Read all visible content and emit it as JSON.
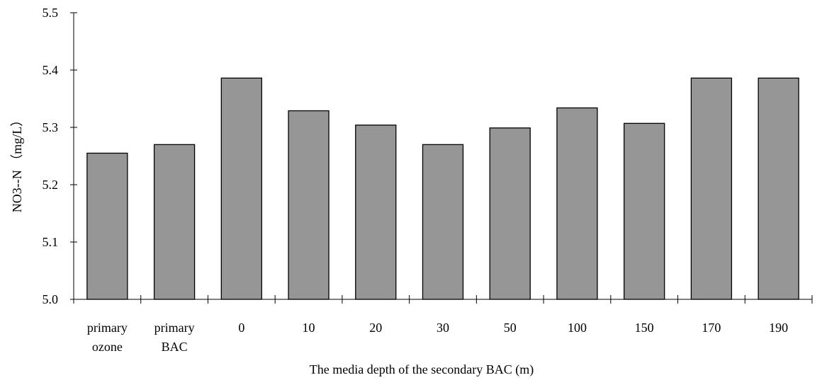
{
  "chart_data": {
    "type": "bar",
    "categories": [
      [
        "primary",
        "ozone"
      ],
      [
        "primary",
        "BAC"
      ],
      [
        "0"
      ],
      [
        "10"
      ],
      [
        "20"
      ],
      [
        "30"
      ],
      [
        "50"
      ],
      [
        "100"
      ],
      [
        "150"
      ],
      [
        "170"
      ],
      [
        "190"
      ]
    ],
    "values": [
      5.255,
      5.27,
      5.386,
      5.329,
      5.304,
      5.27,
      5.299,
      5.334,
      5.307,
      5.386,
      5.386
    ],
    "xlabel": "The media depth of the secondary BAC (m)",
    "ylabel": "NO3--N （mg/L）",
    "ylim": [
      5.0,
      5.5
    ],
    "yticks": [
      "5.0",
      "5.1",
      "5.2",
      "5.3",
      "5.4",
      "5.5"
    ],
    "grid": false,
    "bar_color": "#969696",
    "bar_edge_color": "#000000"
  }
}
